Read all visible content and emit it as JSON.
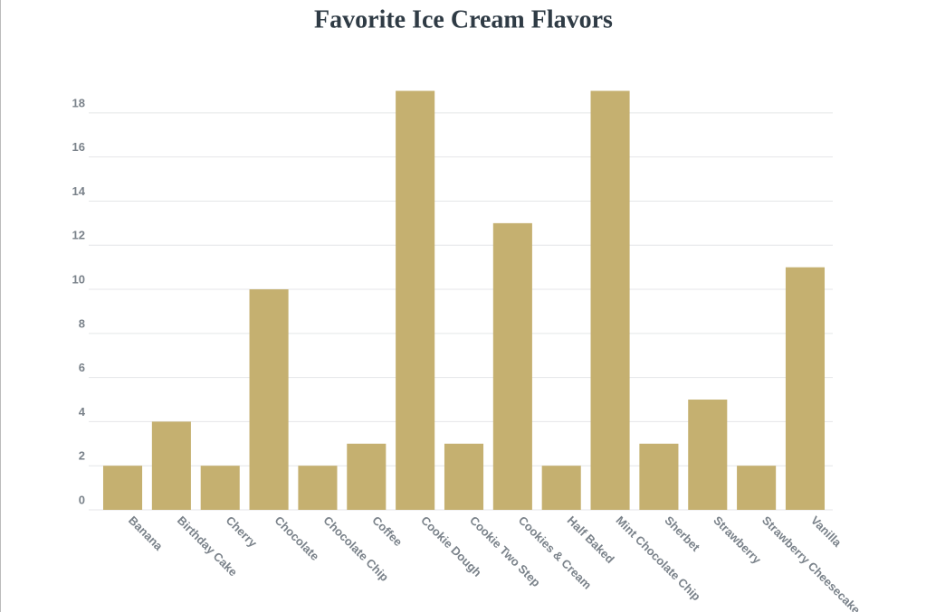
{
  "chart_data": {
    "type": "bar",
    "title": "Favorite Ice Cream Flavors",
    "categories": [
      "Banana",
      "Birthday Cake",
      "Cherry",
      "Chocolate",
      "Chocolate Chip",
      "Coffee",
      "Cookie Dough",
      "Cookie Two Step",
      "Cookies & Cream",
      "Half Baked",
      "Mint Chocolate Chip",
      "Sherbet",
      "Strawberry",
      "Strawberry Cheesecake",
      "Vanilla"
    ],
    "values": [
      2,
      4,
      2,
      10,
      2,
      3,
      19,
      3,
      13,
      2,
      19,
      3,
      5,
      2,
      11
    ],
    "color": "#c5b070",
    "ylim": [
      0,
      19
    ],
    "yticks": [
      0,
      2,
      4,
      6,
      8,
      10,
      12,
      14,
      16,
      18
    ],
    "grid": true
  }
}
